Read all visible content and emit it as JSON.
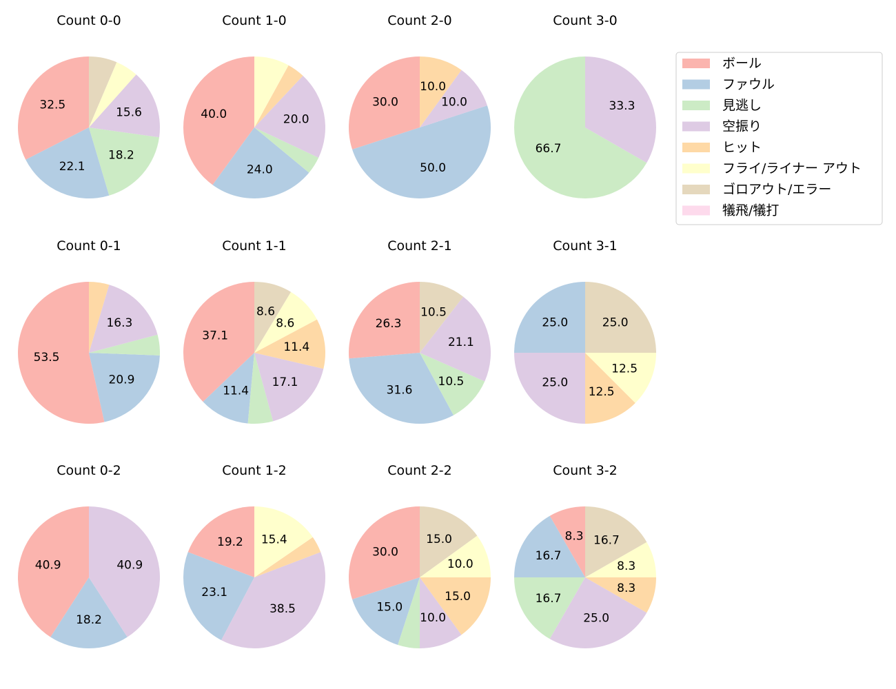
{
  "legend": [
    {
      "key": "ball",
      "label": "ボール",
      "color": "#fbb4ae"
    },
    {
      "key": "foul",
      "label": "ファウル",
      "color": "#b3cde3"
    },
    {
      "key": "called",
      "label": "見逃し",
      "color": "#ccebc5"
    },
    {
      "key": "swing",
      "label": "空振り",
      "color": "#decbe4"
    },
    {
      "key": "hit",
      "label": "ヒット",
      "color": "#fed9a6"
    },
    {
      "key": "fly",
      "label": "フライ/ライナー アウト",
      "color": "#ffffcc"
    },
    {
      "key": "ground",
      "label": "ゴロアウト/エラー",
      "color": "#e5d8bd"
    },
    {
      "key": "sac",
      "label": "犠飛/犠打",
      "color": "#fddaec"
    }
  ],
  "chart_data": [
    {
      "type": "pie",
      "title": "Count 0-0",
      "values": [
        32.5,
        22.1,
        18.2,
        15.6,
        0,
        5.2,
        6.4,
        0
      ],
      "labels": [
        "32.5",
        "22.1",
        "18.2",
        "15.6",
        "",
        "",
        "",
        ""
      ]
    },
    {
      "type": "pie",
      "title": "Count 1-0",
      "values": [
        40.0,
        24.0,
        4.0,
        20.0,
        4.0,
        8.0,
        0,
        0
      ],
      "labels": [
        "40.0",
        "24.0",
        "",
        "20.0",
        "",
        "",
        "",
        ""
      ]
    },
    {
      "type": "pie",
      "title": "Count 2-0",
      "values": [
        30.0,
        50.0,
        0,
        10.0,
        10.0,
        0,
        0,
        0
      ],
      "labels": [
        "30.0",
        "50.0",
        "",
        "10.0",
        "10.0",
        "",
        "",
        ""
      ]
    },
    {
      "type": "pie",
      "title": "Count 3-0",
      "values": [
        0,
        0,
        66.7,
        33.3,
        0,
        0,
        0,
        0
      ],
      "labels": [
        "",
        "",
        "66.7",
        "33.3",
        "",
        "",
        "",
        ""
      ]
    },
    {
      "type": "pie",
      "title": "Count 0-1",
      "values": [
        53.5,
        20.9,
        4.7,
        16.3,
        4.6,
        0,
        0,
        0
      ],
      "labels": [
        "53.5",
        "20.9",
        "",
        "16.3",
        "",
        "",
        "",
        ""
      ]
    },
    {
      "type": "pie",
      "title": "Count 1-1",
      "values": [
        37.1,
        11.4,
        5.7,
        17.1,
        11.4,
        8.6,
        8.6,
        0
      ],
      "labels": [
        "37.1",
        "11.4",
        "",
        "17.1",
        "11.4",
        "8.6",
        "8.6",
        ""
      ]
    },
    {
      "type": "pie",
      "title": "Count 2-1",
      "values": [
        26.3,
        31.6,
        10.5,
        21.1,
        0,
        0,
        10.5,
        0
      ],
      "labels": [
        "26.3",
        "31.6",
        "10.5",
        "21.1",
        "",
        "",
        "10.5",
        ""
      ]
    },
    {
      "type": "pie",
      "title": "Count 3-1",
      "values": [
        0,
        25.0,
        0,
        25.0,
        12.5,
        12.5,
        25.0,
        0
      ],
      "labels": [
        "",
        "25.0",
        "",
        "25.0",
        "12.5",
        "12.5",
        "25.0",
        ""
      ]
    },
    {
      "type": "pie",
      "title": "Count 0-2",
      "values": [
        40.9,
        18.2,
        0,
        40.9,
        0,
        0,
        0,
        0
      ],
      "labels": [
        "40.9",
        "18.2",
        "",
        "40.9",
        "",
        "",
        "",
        ""
      ]
    },
    {
      "type": "pie",
      "title": "Count 1-2",
      "values": [
        19.2,
        23.1,
        0,
        38.5,
        3.8,
        15.4,
        0,
        0
      ],
      "labels": [
        "19.2",
        "23.1",
        "",
        "38.5",
        "",
        "15.4",
        "",
        ""
      ]
    },
    {
      "type": "pie",
      "title": "Count 2-2",
      "values": [
        30.0,
        15.0,
        5.0,
        10.0,
        15.0,
        10.0,
        15.0,
        0
      ],
      "labels": [
        "30.0",
        "15.0",
        "",
        "10.0",
        "15.0",
        "10.0",
        "15.0",
        ""
      ]
    },
    {
      "type": "pie",
      "title": "Count 3-2",
      "values": [
        8.3,
        16.7,
        16.7,
        25.0,
        8.3,
        8.3,
        16.7,
        0
      ],
      "labels": [
        "8.3",
        "16.7",
        "16.7",
        "25.0",
        "8.3",
        "8.3",
        "16.7",
        ""
      ]
    }
  ]
}
